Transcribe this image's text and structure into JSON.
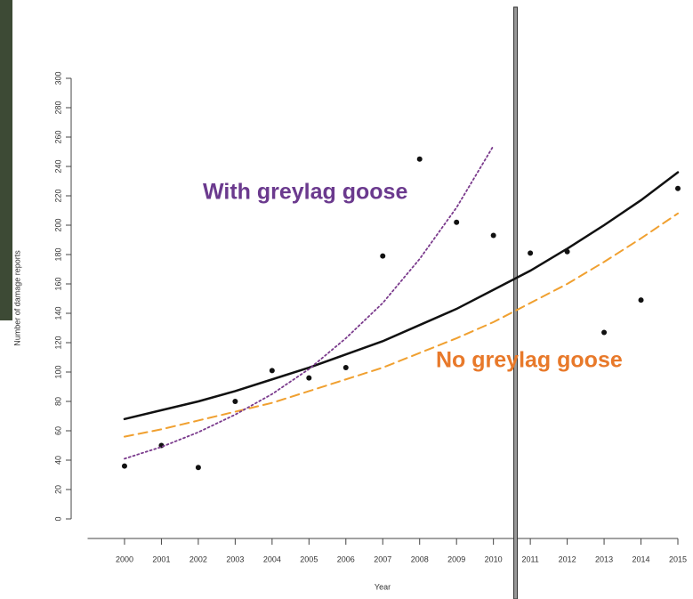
{
  "chart_data": {
    "type": "scatter",
    "x_label": "Year",
    "y_label": "Number of damage reports",
    "x": [
      2000,
      2001,
      2002,
      2003,
      2004,
      2005,
      2006,
      2007,
      2008,
      2009,
      2010,
      2011,
      2012,
      2013,
      2014,
      2015
    ],
    "xlim": [
      1999,
      2015
    ],
    "xticks": [
      2000,
      2001,
      2002,
      2003,
      2004,
      2005,
      2006,
      2007,
      2008,
      2009,
      2010,
      2011,
      2012,
      2013,
      2014,
      2015
    ],
    "ylim": [
      0,
      300
    ],
    "yticks": [
      0,
      20,
      40,
      60,
      80,
      100,
      120,
      140,
      160,
      180,
      200,
      220,
      240,
      260,
      280,
      300
    ],
    "reference_line_x": 2010.6,
    "series": [
      {
        "kind": "points",
        "color": "#111111",
        "values": [
          36,
          50,
          35,
          80,
          101,
          96,
          103,
          179,
          245,
          202,
          193,
          181,
          182,
          127,
          149,
          225
        ]
      },
      {
        "kind": "solid",
        "color": "#111111",
        "values": [
          68,
          74,
          80,
          87,
          95,
          103,
          112,
          121,
          132,
          143,
          156,
          169,
          184,
          200,
          217,
          236
        ]
      },
      {
        "kind": "dashed",
        "name": "No greylag goose",
        "color": "#f0a030",
        "label_color": "#e8792a",
        "values": [
          56,
          61,
          67,
          73,
          79,
          87,
          95,
          103,
          113,
          123,
          134,
          147,
          160,
          175,
          191,
          208
        ]
      },
      {
        "kind": "dotted",
        "name": "With greylag goose",
        "color": "#7a3a8c",
        "label_color": "#6b3a8e",
        "values": [
          41,
          49,
          59,
          71,
          85,
          102,
          123,
          147,
          177,
          212,
          254,
          null,
          null,
          null,
          null,
          null
        ]
      }
    ]
  }
}
